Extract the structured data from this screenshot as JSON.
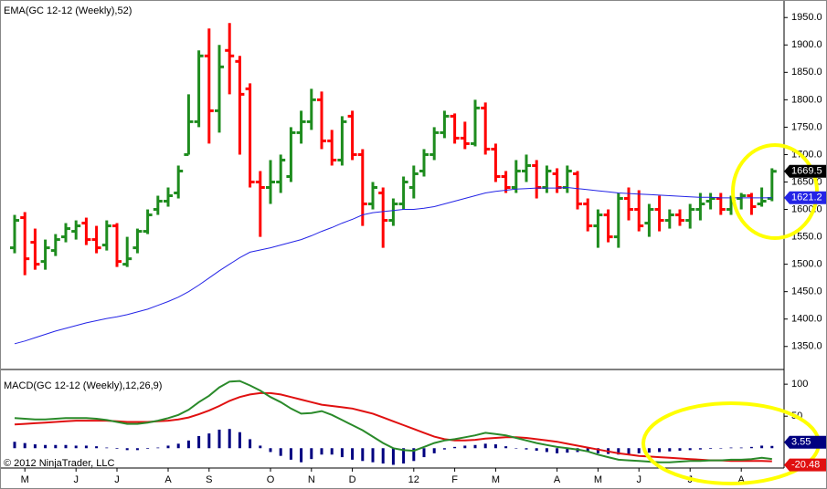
{
  "chart_data": [
    {
      "type": "ohlc",
      "title": "EMA(GC 12-12 (Weekly),52)",
      "categories": [
        null,
        "M",
        null,
        null,
        null,
        null,
        "J",
        null,
        null,
        null,
        "J",
        null,
        null,
        null,
        null,
        "A",
        null,
        null,
        null,
        "S",
        null,
        null,
        null,
        null,
        null,
        "O",
        null,
        null,
        null,
        "N",
        null,
        null,
        null,
        "D",
        null,
        null,
        null,
        null,
        null,
        "12",
        null,
        null,
        null,
        "F",
        null,
        null,
        null,
        "M",
        null,
        null,
        null,
        null,
        null,
        "A",
        null,
        null,
        null,
        "M",
        null,
        null,
        null,
        "J",
        null,
        null,
        null,
        null,
        "J",
        null,
        null,
        null,
        null,
        "A",
        null,
        null,
        null
      ],
      "open": [
        1530,
        1585,
        1540,
        1505,
        1525,
        1550,
        1560,
        1575,
        1545,
        1535,
        1570,
        1500,
        1530,
        1560,
        1600,
        1615,
        1630,
        1700,
        1760,
        1880,
        1780,
        1890,
        1870,
        1820,
        1650,
        1640,
        1650,
        1660,
        1740,
        1760,
        1800,
        1725,
        1690,
        1770,
        1700,
        1610,
        1630,
        1580,
        1610,
        1640,
        1670,
        1700,
        1740,
        1770,
        1730,
        1720,
        1785,
        1710,
        1660,
        1640,
        1670,
        1680,
        1640,
        1665,
        1640,
        1665,
        1610,
        1570,
        1590,
        1550,
        1620,
        1600,
        1575,
        1600,
        1580,
        1590,
        1580,
        1600,
        1615,
        1620,
        1600,
        1620,
        1625,
        1610,
        1620
      ],
      "high": [
        1590,
        1595,
        1565,
        1545,
        1555,
        1575,
        1580,
        1585,
        1570,
        1580,
        1575,
        1550,
        1565,
        1600,
        1625,
        1640,
        1680,
        1810,
        1890,
        1930,
        1900,
        1940,
        1880,
        1830,
        1670,
        1690,
        1700,
        1750,
        1780,
        1820,
        1815,
        1745,
        1770,
        1780,
        1710,
        1650,
        1640,
        1620,
        1660,
        1680,
        1710,
        1750,
        1780,
        1775,
        1760,
        1800,
        1795,
        1720,
        1670,
        1690,
        1700,
        1690,
        1680,
        1675,
        1680,
        1670,
        1620,
        1600,
        1600,
        1630,
        1640,
        1635,
        1610,
        1625,
        1600,
        1600,
        1610,
        1630,
        1630,
        1630,
        1625,
        1630,
        1630,
        1640,
        1675
      ],
      "low": [
        1520,
        1480,
        1490,
        1490,
        1515,
        1540,
        1545,
        1535,
        1520,
        1525,
        1495,
        1495,
        1520,
        1555,
        1590,
        1605,
        1620,
        1700,
        1750,
        1720,
        1740,
        1810,
        1700,
        1640,
        1550,
        1610,
        1630,
        1650,
        1720,
        1745,
        1710,
        1680,
        1680,
        1690,
        1570,
        1600,
        1530,
        1570,
        1600,
        1620,
        1660,
        1690,
        1730,
        1720,
        1710,
        1715,
        1700,
        1650,
        1630,
        1630,
        1650,
        1620,
        1630,
        1630,
        1630,
        1600,
        1560,
        1530,
        1540,
        1530,
        1580,
        1560,
        1550,
        1560,
        1565,
        1570,
        1565,
        1580,
        1600,
        1590,
        1590,
        1600,
        1590,
        1605,
        1615
      ],
      "close": [
        1580,
        1510,
        1500,
        1530,
        1545,
        1565,
        1570,
        1545,
        1530,
        1570,
        1505,
        1510,
        1560,
        1590,
        1615,
        1625,
        1670,
        1760,
        1880,
        1780,
        1860,
        1880,
        1810,
        1650,
        1640,
        1650,
        1690,
        1740,
        1760,
        1800,
        1725,
        1690,
        1760,
        1700,
        1610,
        1640,
        1580,
        1610,
        1650,
        1665,
        1700,
        1740,
        1770,
        1730,
        1720,
        1785,
        1710,
        1660,
        1640,
        1670,
        1680,
        1640,
        1670,
        1640,
        1670,
        1610,
        1570,
        1590,
        1550,
        1620,
        1600,
        1570,
        1600,
        1580,
        1590,
        1580,
        1600,
        1610,
        1620,
        1600,
        1615,
        1625,
        1605,
        1615,
        1669.5
      ],
      "up_color": "#1e8c1e",
      "down_color": "#ff0000",
      "ema": {
        "color": "#2424e6",
        "values": [
          1355,
          1360,
          1366,
          1372,
          1378,
          1383,
          1388,
          1393,
          1397,
          1401,
          1404,
          1408,
          1413,
          1418,
          1425,
          1432,
          1440,
          1450,
          1462,
          1475,
          1488,
          1500,
          1512,
          1522,
          1526,
          1530,
          1535,
          1540,
          1545,
          1552,
          1560,
          1567,
          1575,
          1582,
          1590,
          1594,
          1596,
          1598,
          1600,
          1600,
          1602,
          1605,
          1610,
          1615,
          1620,
          1625,
          1630,
          1633,
          1635,
          1637,
          1638,
          1639,
          1639,
          1639,
          1640,
          1638,
          1636,
          1634,
          1632,
          1630,
          1629,
          1628,
          1627,
          1626,
          1625,
          1624,
          1623,
          1622,
          1622,
          1621,
          1621,
          1621,
          1621,
          1621,
          1621.2
        ]
      },
      "ylim": [
        1308,
        1982
      ],
      "yticks": [
        {
          "value": 1350,
          "label": "1350.0"
        },
        {
          "value": 1400,
          "label": "1400.0"
        },
        {
          "value": 1450,
          "label": "1450.0"
        },
        {
          "value": 1500,
          "label": "1500.0"
        },
        {
          "value": 1550,
          "label": "1550.0"
        },
        {
          "value": 1600,
          "label": "1600.0"
        },
        {
          "value": 1650,
          "label": "1650.0"
        },
        {
          "value": 1700,
          "label": "1700.0"
        },
        {
          "value": 1750,
          "label": "1750.0"
        },
        {
          "value": 1800,
          "label": "1800.0"
        },
        {
          "value": 1850,
          "label": "1850.0"
        },
        {
          "value": 1900,
          "label": "1900.0"
        },
        {
          "value": 1950,
          "label": "1950.0"
        }
      ]
    },
    {
      "type": "macd",
      "title": "MACD(GC 12-12 (Weekly),12,26,9)",
      "macd": {
        "color": "#2a8a2a",
        "values": [
          47,
          46,
          45,
          45,
          46,
          47,
          47,
          47,
          46,
          44,
          41,
          38,
          38,
          40,
          43,
          47,
          52,
          60,
          72,
          82,
          95,
          104,
          105,
          98,
          90,
          80,
          72,
          62,
          54,
          55,
          58,
          52,
          44,
          36,
          28,
          18,
          8,
          0,
          -3,
          -4,
          2,
          8,
          12,
          14,
          17,
          20,
          24,
          22,
          20,
          16,
          12,
          8,
          5,
          2,
          0,
          -2,
          -5,
          -10,
          -14,
          -18,
          -19,
          -20,
          -21,
          -22,
          -22,
          -21,
          -20,
          -20,
          -19,
          -19,
          -18,
          -18,
          -17,
          -15,
          -16.93
        ]
      },
      "signal": {
        "color": "#e01010",
        "values": [
          37,
          38,
          39,
          40,
          41,
          42,
          43,
          43,
          43,
          43,
          42,
          41,
          41,
          41,
          42,
          43,
          45,
          48,
          53,
          59,
          66,
          74,
          80,
          84,
          86,
          86,
          84,
          80,
          76,
          72,
          68,
          66,
          64,
          62,
          58,
          54,
          48,
          42,
          36,
          30,
          24,
          18,
          14,
          12,
          12,
          13,
          15,
          16,
          17,
          17,
          16,
          14,
          12,
          10,
          7,
          4,
          1,
          -2,
          -5,
          -8,
          -10,
          -12,
          -13,
          -14,
          -15,
          -16,
          -17,
          -18,
          -19,
          -19,
          -20,
          -20,
          -20,
          -20,
          -20.48
        ]
      },
      "histogram": {
        "color": "#000080",
        "values": [
          10,
          8,
          6,
          5,
          5,
          5,
          4,
          4,
          3,
          1,
          -1,
          -3,
          -3,
          -1,
          1,
          4,
          7,
          12,
          19,
          23,
          29,
          30,
          25,
          14,
          4,
          -6,
          -12,
          -18,
          -22,
          -17,
          -10,
          -10,
          -14,
          -18,
          -20,
          -22,
          -24,
          -26,
          -24,
          -20,
          -14,
          -8,
          -2,
          2,
          4,
          5,
          7,
          6,
          3,
          0,
          -2,
          -4,
          -6,
          -8,
          -7,
          -6,
          -6,
          -8,
          -9,
          -10,
          -9,
          -8,
          -7,
          -6,
          -5,
          -4,
          -3,
          -2,
          -1,
          0,
          1,
          1,
          2,
          4,
          3.55
        ]
      },
      "ylim": [
        -31,
        123
      ],
      "yticks": [
        50,
        100
      ]
    }
  ],
  "copyright": "© 2012 NinjaTrader, LLC"
}
